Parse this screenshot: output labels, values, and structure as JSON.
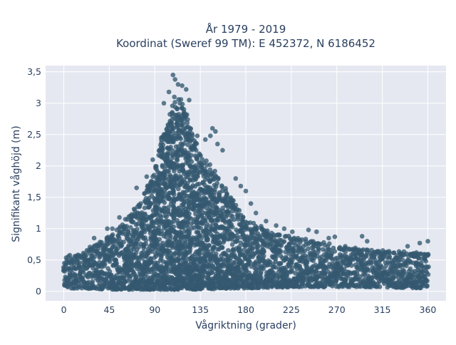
{
  "chart_data": {
    "type": "scatter",
    "title_line1": "År 1979 - 2019",
    "title_line2": "Koordinat (Sweref 99 TM): E 452372, N 6186452",
    "xlabel": "Vågriktning (grader)",
    "ylabel": "Signifikant våghöjd (m)",
    "xlim": [
      -18,
      378
    ],
    "ylim": [
      -0.15,
      3.6
    ],
    "xticks": [
      0,
      45,
      90,
      135,
      180,
      225,
      270,
      315,
      360
    ],
    "xtick_labels": [
      "0",
      "45",
      "90",
      "135",
      "180",
      "225",
      "270",
      "315",
      "360"
    ],
    "yticks": [
      0,
      0.5,
      1,
      1.5,
      2,
      2.5,
      3,
      3.5
    ],
    "ytick_labels": [
      "0",
      "0,5",
      "1",
      "1,5",
      "2",
      "2,5",
      "3",
      "3,5"
    ],
    "grid": true,
    "background": "#e5e8f0",
    "marker_color": "#34596f",
    "envelope": {
      "x": [
        0,
        15,
        30,
        45,
        60,
        75,
        90,
        100,
        110,
        120,
        135,
        150,
        165,
        180,
        200,
        225,
        250,
        270,
        300,
        330,
        360
      ],
      "upper": [
        0.55,
        0.58,
        0.72,
        0.9,
        1.1,
        1.42,
        1.95,
        2.6,
        3.05,
        2.9,
        2.15,
        1.85,
        1.5,
        1.12,
        0.98,
        0.85,
        0.78,
        0.72,
        0.65,
        0.62,
        0.6
      ],
      "lower": [
        0.05,
        0.05,
        0.04,
        0.03,
        0.03,
        0.03,
        0.03,
        0.03,
        0.03,
        0.03,
        0.03,
        0.04,
        0.05,
        0.05,
        0.06,
        0.07,
        0.07,
        0.07,
        0.07,
        0.06,
        0.05
      ]
    },
    "outliers": [
      {
        "x": 108,
        "y": 3.45
      },
      {
        "x": 110,
        "y": 3.38
      },
      {
        "x": 113,
        "y": 3.3
      },
      {
        "x": 117,
        "y": 3.28
      },
      {
        "x": 104,
        "y": 3.18
      },
      {
        "x": 121,
        "y": 3.22
      },
      {
        "x": 124,
        "y": 3.05
      },
      {
        "x": 99,
        "y": 3.0
      },
      {
        "x": 147,
        "y": 2.6
      },
      {
        "x": 150,
        "y": 2.55
      },
      {
        "x": 145,
        "y": 2.48
      },
      {
        "x": 152,
        "y": 2.35
      },
      {
        "x": 157,
        "y": 2.25
      },
      {
        "x": 140,
        "y": 2.42
      },
      {
        "x": 132,
        "y": 2.48
      },
      {
        "x": 170,
        "y": 1.8
      },
      {
        "x": 175,
        "y": 1.68
      },
      {
        "x": 180,
        "y": 1.6
      },
      {
        "x": 185,
        "y": 1.4
      },
      {
        "x": 190,
        "y": 1.25
      },
      {
        "x": 200,
        "y": 1.12
      },
      {
        "x": 210,
        "y": 1.05
      },
      {
        "x": 218,
        "y": 1.0
      },
      {
        "x": 226,
        "y": 0.95
      },
      {
        "x": 242,
        "y": 0.98
      },
      {
        "x": 250,
        "y": 0.95
      },
      {
        "x": 262,
        "y": 0.85
      },
      {
        "x": 268,
        "y": 0.87
      },
      {
        "x": 295,
        "y": 0.88
      },
      {
        "x": 300,
        "y": 0.8
      },
      {
        "x": 352,
        "y": 0.77
      },
      {
        "x": 360,
        "y": 0.8
      },
      {
        "x": 340,
        "y": 0.72
      },
      {
        "x": 43,
        "y": 1.0
      },
      {
        "x": 48,
        "y": 1.0
      },
      {
        "x": 30,
        "y": 0.85
      },
      {
        "x": 55,
        "y": 1.18
      },
      {
        "x": 72,
        "y": 1.65
      },
      {
        "x": 82,
        "y": 1.83
      },
      {
        "x": 88,
        "y": 2.1
      }
    ]
  }
}
